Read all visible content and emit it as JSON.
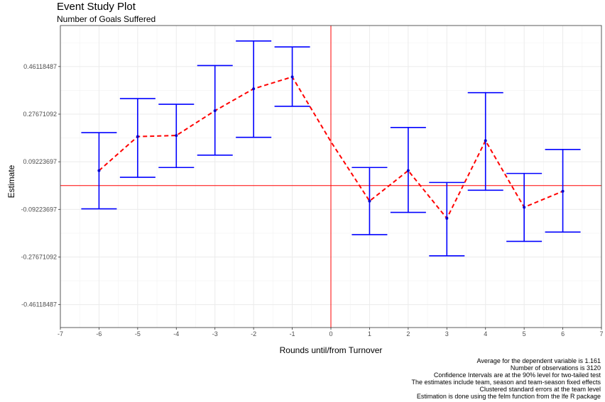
{
  "title": "Event Study Plot",
  "subtitle": "Number of Goals Suffered",
  "chart_data": {
    "type": "line",
    "xlabel": "Rounds until/from Turnover",
    "ylabel": "Estimate",
    "xlim": [
      -7,
      7
    ],
    "ylim": [
      -0.55,
      0.62
    ],
    "x_ticks": [
      "-7",
      "-6",
      "-5",
      "-4",
      "-3",
      "-2",
      "-1",
      "0",
      "1",
      "2",
      "3",
      "4",
      "5",
      "6",
      "7"
    ],
    "y_ticks": [
      {
        "value": -0.46118487,
        "label": "-0.46118487"
      },
      {
        "value": -0.27671092,
        "label": "-0.27671092"
      },
      {
        "value": -0.09223697,
        "label": "-0.09223697"
      },
      {
        "value": 0.09223697,
        "label": "0.09223697"
      },
      {
        "value": 0.27671092,
        "label": "0.27671092"
      },
      {
        "value": 0.46118487,
        "label": "0.46118487"
      }
    ],
    "grid": true,
    "reference_lines": {
      "x": 0,
      "y": 0,
      "color": "#ff0000"
    },
    "series": [
      {
        "x": [
          -6,
          -5,
          -4,
          -3,
          -2,
          -1,
          1,
          2,
          3,
          4,
          5,
          6
        ],
        "estimate": [
          0.058,
          0.19,
          0.194,
          0.29,
          0.375,
          0.421,
          -0.06,
          0.058,
          -0.127,
          0.174,
          -0.084,
          -0.022
        ],
        "ci_lower": [
          -0.09,
          0.032,
          0.07,
          0.118,
          0.187,
          0.307,
          -0.19,
          -0.104,
          -0.272,
          -0.018,
          -0.216,
          -0.18
        ],
        "ci_upper": [
          0.205,
          0.337,
          0.315,
          0.465,
          0.56,
          0.537,
          0.07,
          0.225,
          0.012,
          0.36,
          0.047,
          0.14
        ],
        "line_style": "dashed",
        "line_color": "#ff0000",
        "errorbar_color": "#0000ff",
        "point_color": "#0000cd"
      }
    ],
    "anchor_point": {
      "x": 0,
      "y": 0.17
    }
  },
  "caption": [
    "Average for the dependent variable is 1.161",
    "Number of observations is 3120",
    "Confidence Intervals are at the 90% level for two-tailed test",
    "The estimates include team, season and team-season fixed effects",
    "Clustered standard errors at the team level",
    "Estimation is done using the felm function from the lfe R package"
  ]
}
